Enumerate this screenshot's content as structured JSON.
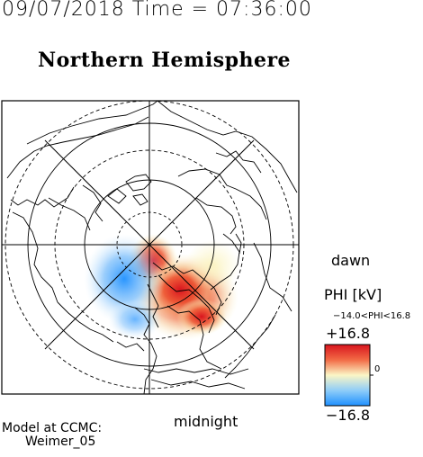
{
  "header": {
    "datetime": "09/07/2018 Time = 07:36:00"
  },
  "title": "Northern Hemisphere",
  "map": {
    "projection": "polar-stereographic",
    "hemisphere": "north",
    "field": "electric potential",
    "coastline_color": "#000000",
    "grid_color": "#000000"
  },
  "labels": {
    "dawn": "dawn",
    "midnight": "midnight"
  },
  "legend": {
    "title": "PHI [kV]",
    "range_text": "−14.0<PHI<16.8",
    "max_label": "+16.8",
    "min_label": "−16.8",
    "zero_label": "0",
    "colors": {
      "max": "#d8141e",
      "mid": "#fbf6c6",
      "min": "#1e90ff"
    }
  },
  "model": {
    "line1": "Model at CCMC:",
    "line2": "Weimer_05"
  }
}
